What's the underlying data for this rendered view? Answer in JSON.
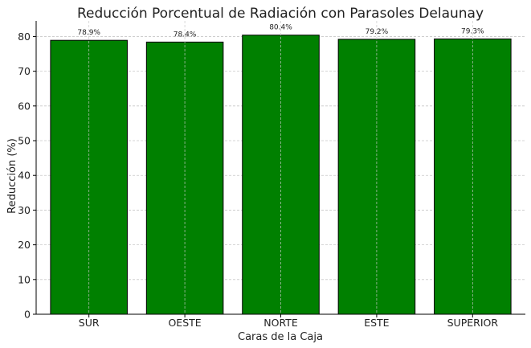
{
  "chart_data": {
    "type": "bar",
    "title": "Reducción Porcentual de Radiación con Parasoles Delaunay",
    "xlabel": "Caras de la Caja",
    "ylabel": "Reducción (%)",
    "categories": [
      "SUR",
      "OESTE",
      "NORTE",
      "ESTE",
      "SUPERIOR"
    ],
    "values": [
      78.9,
      78.4,
      80.4,
      79.2,
      79.3
    ],
    "data_labels": [
      "78.9%",
      "78.4%",
      "80.4%",
      "79.2%",
      "79.3%"
    ],
    "ylim": [
      0,
      84.5
    ],
    "yticks": [
      0,
      10,
      20,
      30,
      40,
      50,
      60,
      70,
      80
    ],
    "ytick_labels": [
      "0",
      "10",
      "20",
      "30",
      "40",
      "50",
      "60",
      "70",
      "80"
    ],
    "grid": true,
    "bar_color": "#008000",
    "bar_edge_color": "#000000"
  }
}
